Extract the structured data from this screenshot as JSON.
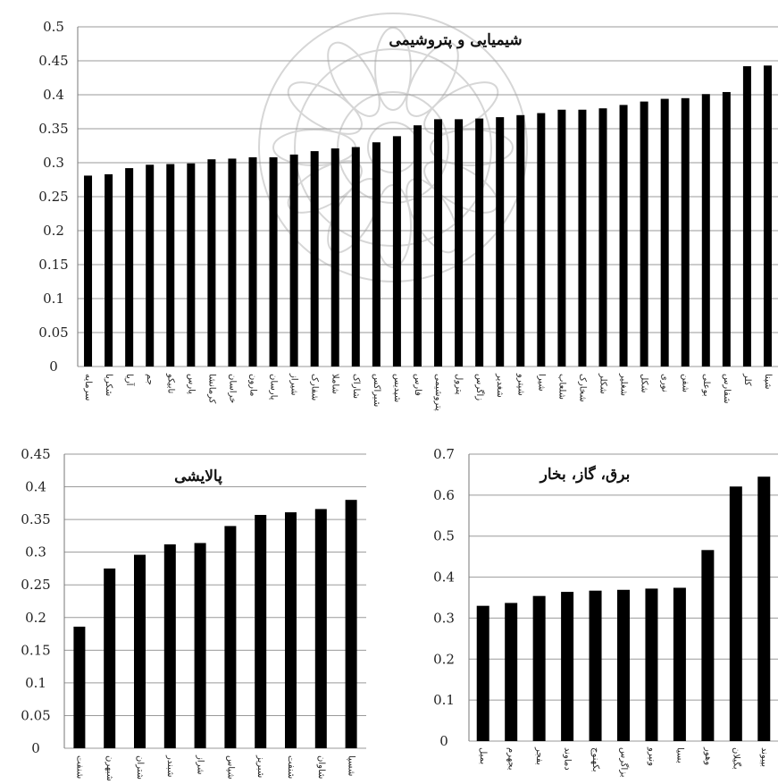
{
  "chart_data": [
    {
      "type": "bar",
      "title": "شیمیایی و پتروشیمی",
      "ylim": [
        0,
        0.5
      ],
      "yticks": [
        "0",
        "0.05",
        "0.1",
        "0.15",
        "0.2",
        "0.25",
        "0.3",
        "0.35",
        "0.4",
        "0.45",
        "0.5"
      ],
      "grid": true,
      "categories": [
        "سرمایه",
        "شکربا",
        "آریا",
        "جم",
        "تابیکو",
        "پارس",
        "کرمانشا",
        "خراسان",
        "مارون",
        "پارسان",
        "شیراز",
        "شفارک",
        "شاملا",
        "شاراک",
        "شیراکس",
        "شپدیس",
        "فارس",
        "پتروشیمی",
        "پترول",
        "زاگرس",
        "شغدیر",
        "شپترو",
        "شیرا",
        "شلعاب",
        "شخارک",
        "شکلر",
        "شغلیر",
        "شکل",
        "نوری",
        "شفن",
        "بوعلی",
        "شفارس",
        "کلر",
        "شپنا"
      ],
      "values": [
        0.281,
        0.283,
        0.292,
        0.297,
        0.298,
        0.299,
        0.305,
        0.306,
        0.308,
        0.308,
        0.312,
        0.317,
        0.321,
        0.323,
        0.33,
        0.339,
        0.355,
        0.364,
        0.364,
        0.365,
        0.367,
        0.37,
        0.373,
        0.378,
        0.378,
        0.38,
        0.385,
        0.39,
        0.394,
        0.395,
        0.401,
        0.404,
        0.442,
        0.443
      ]
    },
    {
      "type": "bar",
      "title": "پالایشی",
      "ylim": [
        0,
        0.45
      ],
      "yticks": [
        "0",
        "0.05",
        "0.1",
        "0.15",
        "0.2",
        "0.25",
        "0.3",
        "0.35",
        "0.4",
        "0.45"
      ],
      "grid": true,
      "categories": [
        "شنفت",
        "شبهرن",
        "شتران",
        "شبندر",
        "شراز",
        "شپاس",
        "شبریز",
        "شنفت",
        "شاوان",
        "شسپا"
      ],
      "values": [
        0.186,
        0.275,
        0.296,
        0.312,
        0.314,
        0.34,
        0.357,
        0.361,
        0.366,
        0.38
      ]
    },
    {
      "type": "bar",
      "title": "برق، گاز، بخار",
      "ylim": [
        0,
        0.7
      ],
      "yticks": [
        "0",
        "0.1",
        "0.2",
        "0.3",
        "0.4",
        "0.5",
        "0.6",
        "0.7"
      ],
      "grid": true,
      "categories": [
        "بمیل",
        "بجهرم",
        "بفجر",
        "دماوند",
        "بکهنوج",
        "بزاگرس",
        "ونیرو",
        "بسیا",
        "وهور",
        "بگیلان",
        "بپیوند"
      ],
      "values": [
        0.33,
        0.337,
        0.354,
        0.364,
        0.367,
        0.369,
        0.372,
        0.374,
        0.466,
        0.621,
        0.645
      ]
    }
  ]
}
